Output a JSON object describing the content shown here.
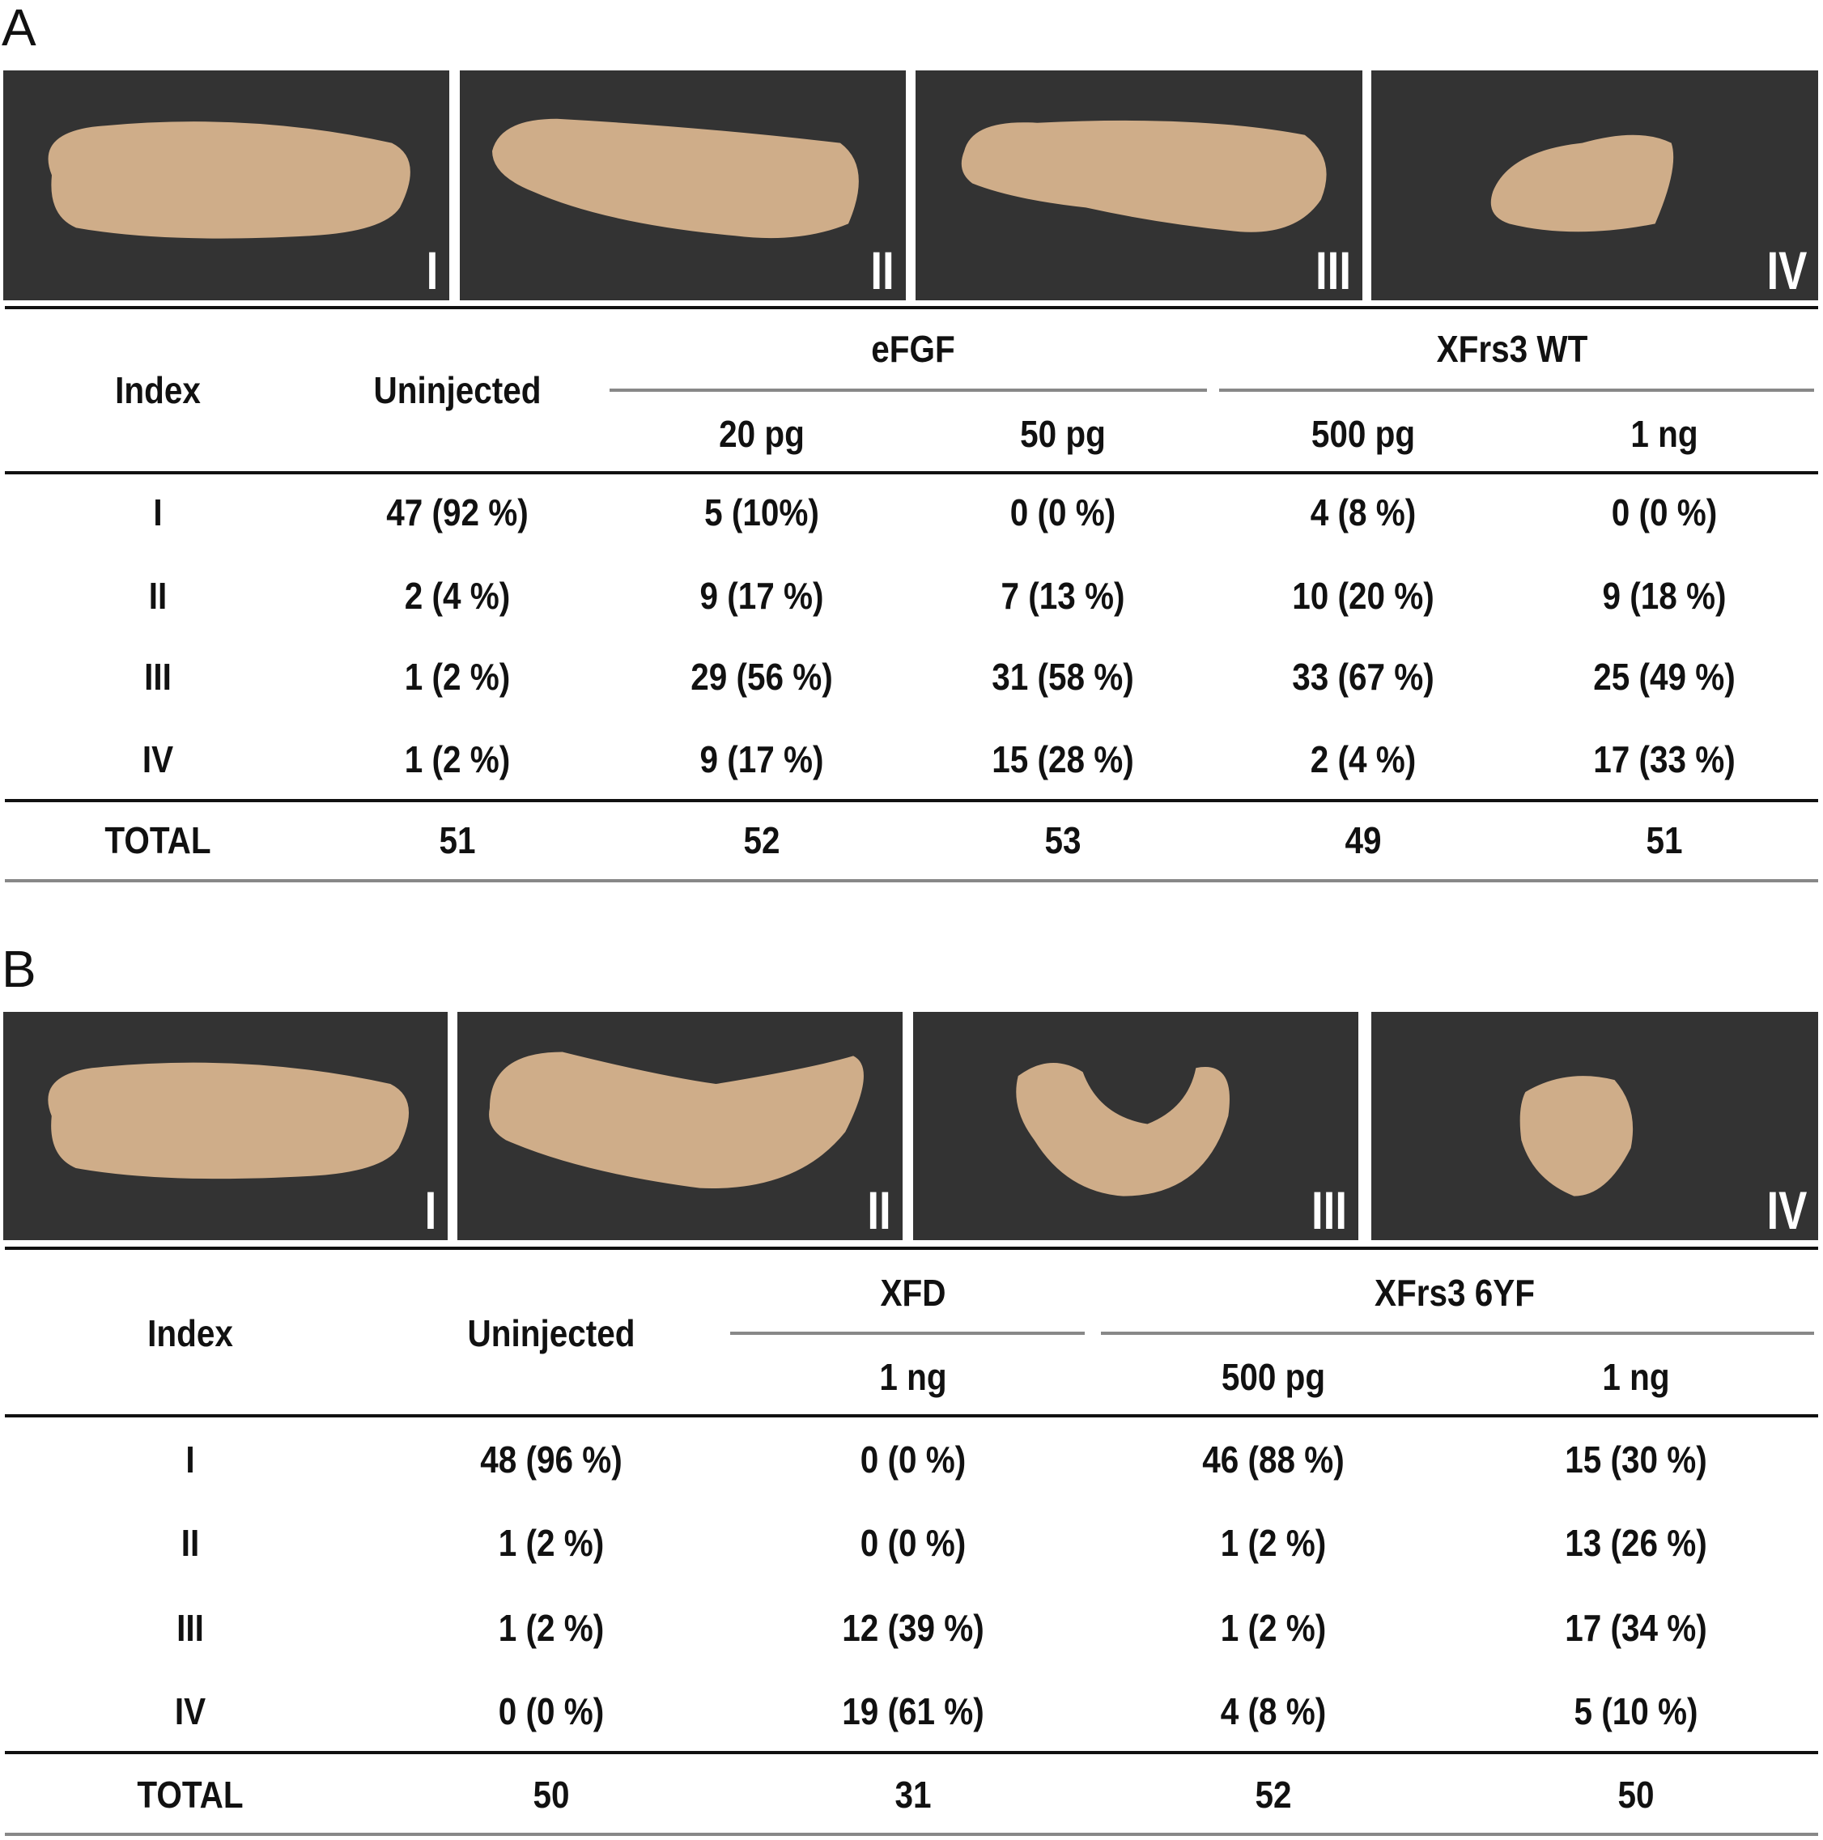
{
  "panel_A": {
    "label": "A",
    "images": [
      {
        "numeral": "I"
      },
      {
        "numeral": "II"
      },
      {
        "numeral": "III"
      },
      {
        "numeral": "IV"
      }
    ],
    "table": {
      "index_header": "Index",
      "uninjected_header": "Uninjected",
      "groups": [
        {
          "name": "eFGF",
          "doses": [
            "20 pg",
            "50 pg"
          ]
        },
        {
          "name": "XFrs3 WT",
          "doses": [
            "500 pg",
            "1 ng"
          ]
        }
      ],
      "rows": [
        {
          "index": "I",
          "values": [
            "47 (92 %)",
            "5 (10%)",
            "0 (0 %)",
            "4 (8 %)",
            "0 (0 %)"
          ]
        },
        {
          "index": "II",
          "values": [
            "2 (4 %)",
            "9 (17 %)",
            "7 (13 %)",
            "10 (20 %)",
            "9 (18 %)"
          ]
        },
        {
          "index": "III",
          "values": [
            "1 (2 %)",
            "29 (56 %)",
            "31 (58 %)",
            "33 (67 %)",
            "25 (49 %)"
          ]
        },
        {
          "index": "IV",
          "values": [
            "1 (2 %)",
            "9 (17 %)",
            "15 (28 %)",
            "2 (4 %)",
            "17 (33 %)"
          ]
        }
      ],
      "total": {
        "index": "TOTAL",
        "values": [
          "51",
          "52",
          "53",
          "49",
          "51"
        ]
      }
    }
  },
  "panel_B": {
    "label": "B",
    "images": [
      {
        "numeral": "I"
      },
      {
        "numeral": "II"
      },
      {
        "numeral": "III"
      },
      {
        "numeral": "IV"
      }
    ],
    "table": {
      "index_header": "Index",
      "uninjected_header": "Uninjected",
      "groups": [
        {
          "name": "XFD",
          "doses": [
            "1 ng"
          ]
        },
        {
          "name": "XFrs3 6YF",
          "doses": [
            "500 pg",
            "1 ng"
          ]
        }
      ],
      "rows": [
        {
          "index": "I",
          "values": [
            "48 (96 %)",
            "0 (0 %)",
            "46 (88 %)",
            "15 (30 %)"
          ]
        },
        {
          "index": "II",
          "values": [
            "1 (2 %)",
            "0 (0 %)",
            "1 (2 %)",
            "13 (26 %)"
          ]
        },
        {
          "index": "III",
          "values": [
            "1 (2 %)",
            "12 (39 %)",
            "1 (2 %)",
            "17 (34 %)"
          ]
        },
        {
          "index": "IV",
          "values": [
            "0 (0 %)",
            "19 (61 %)",
            "4 (8 %)",
            "5 (10 %)"
          ]
        }
      ],
      "total": {
        "index": "TOTAL",
        "values": [
          "50",
          "31",
          "52",
          "50"
        ]
      }
    }
  },
  "colors": {
    "panel_bg": "#333333",
    "embryo": "#d8b48e",
    "rule_dark": "#111111",
    "rule_gray": "#888888"
  }
}
